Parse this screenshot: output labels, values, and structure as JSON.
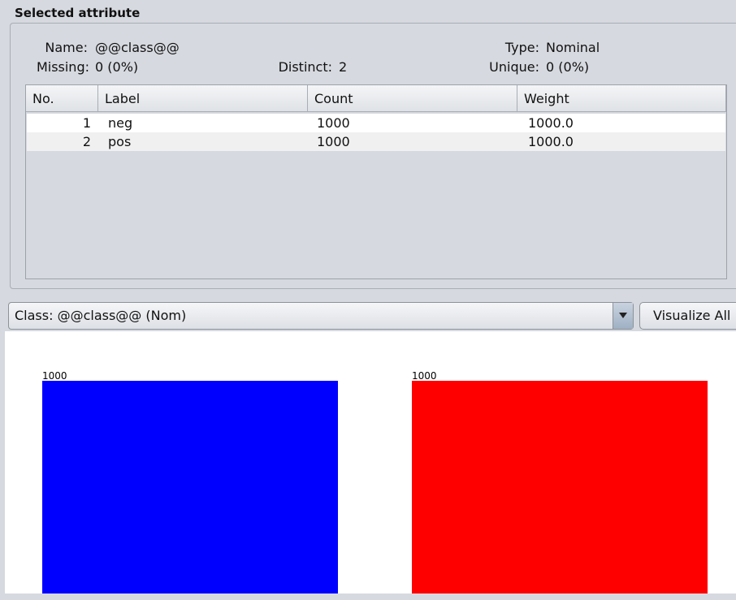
{
  "panel": {
    "title": "Selected attribute",
    "name_label": "Name:",
    "name": "@@class@@",
    "type_label": "Type:",
    "type": "Nominal",
    "missing_label": "Missing:",
    "missing": "0 (0%)",
    "distinct_label": "Distinct:",
    "distinct": 2,
    "unique_label": "Unique:",
    "unique": "0 (0%)"
  },
  "table": {
    "columns": [
      "No.",
      "Label",
      "Count",
      "Weight"
    ],
    "rows": [
      [
        1,
        "neg",
        1000,
        "1000.0"
      ],
      [
        2,
        "pos",
        1000,
        "1000.0"
      ]
    ]
  },
  "class_selector": "Class: @@class@@ (Nom)",
  "button": "Visualize All",
  "chart_data": {
    "type": "bar",
    "values": [
      1000,
      1000
    ],
    "colors": [
      "#0000ff",
      "#ff0000"
    ]
  }
}
